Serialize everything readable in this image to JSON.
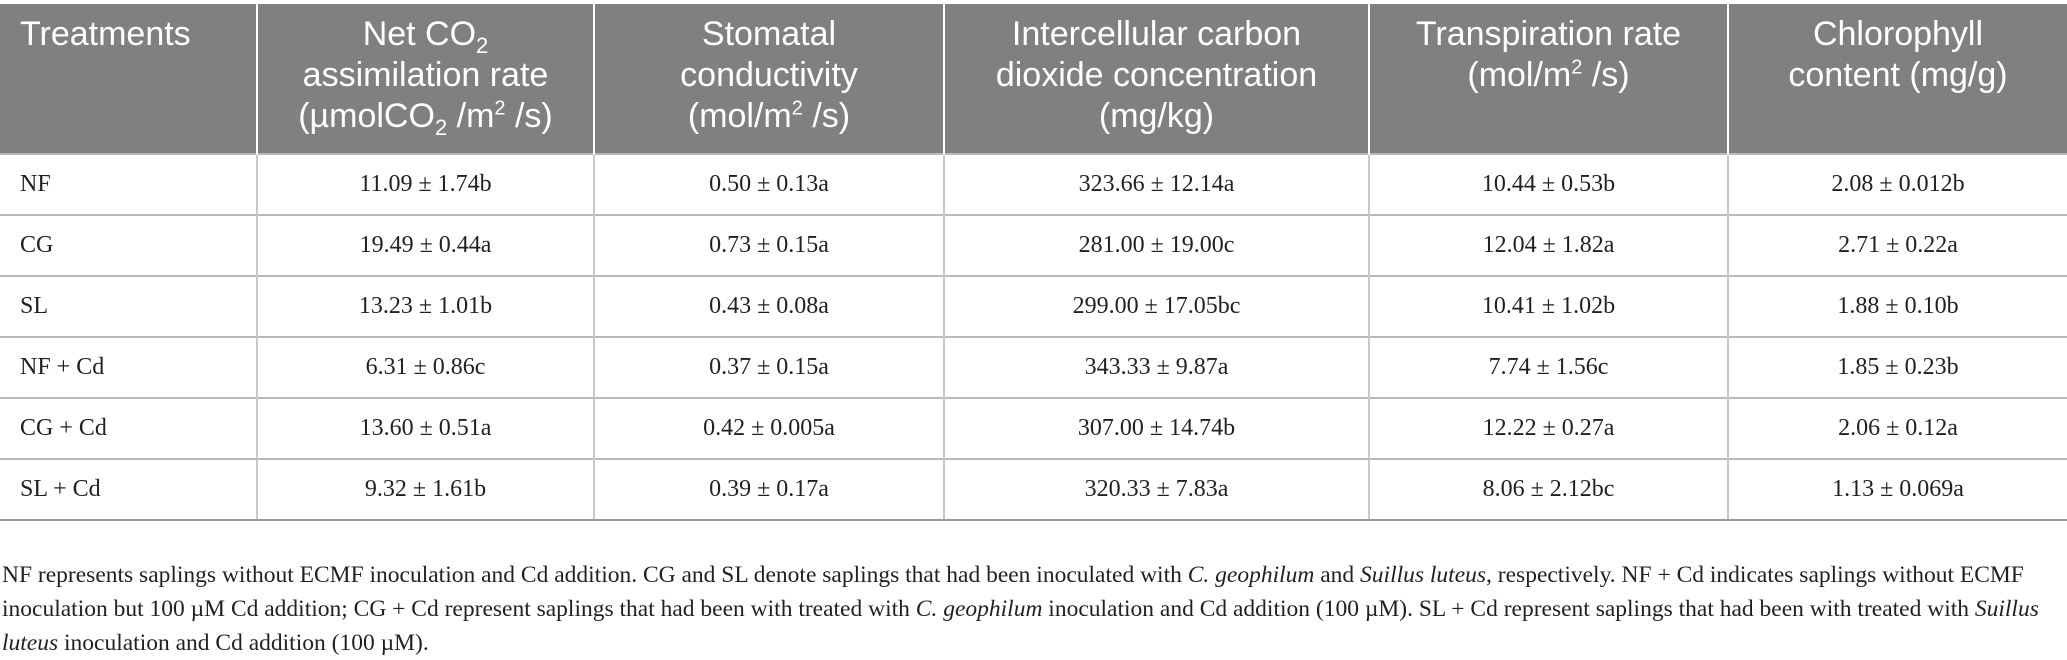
{
  "table": {
    "headers": [
      {
        "lines": [
          "Treatments"
        ]
      },
      {
        "line1_pre": "Net CO",
        "line1_sub": "2",
        "line2": "assimilation rate",
        "line3_pre": "(µmolCO",
        "line3_sub": "2",
        "line3_mid": " /m",
        "line3_sup": "2",
        "line3_post": " /s)"
      },
      {
        "line1": "Stomatal",
        "line2": "conductivity",
        "line3_pre": "(mol/m",
        "line3_sup": "2",
        "line3_post": " /s)"
      },
      {
        "line1": "Intercellular carbon",
        "line2": "dioxide concentration",
        "line3": "(mg/kg)"
      },
      {
        "line1": "Transpiration rate",
        "line2_pre": "(mol/m",
        "line2_sup": "2",
        "line2_post": " /s)"
      },
      {
        "line1": "Chlorophyll",
        "line2": "content (mg/g)"
      }
    ],
    "rows": [
      [
        "NF",
        "11.09 ± 1.74b",
        "0.50 ± 0.13a",
        "323.66 ± 12.14a",
        "10.44 ± 0.53b",
        "2.08 ± 0.012b"
      ],
      [
        "CG",
        "19.49 ± 0.44a",
        "0.73 ± 0.15a",
        "281.00 ± 19.00c",
        "12.04 ± 1.82a",
        "2.71 ± 0.22a"
      ],
      [
        "SL",
        "13.23 ± 1.01b",
        "0.43 ± 0.08a",
        "299.00 ± 17.05bc",
        "10.41 ± 1.02b",
        "1.88 ± 0.10b"
      ],
      [
        "NF + Cd",
        "6.31 ± 0.86c",
        "0.37 ± 0.15a",
        "343.33 ± 9.87a",
        "7.74 ± 1.56c",
        "1.85 ± 0.23b"
      ],
      [
        "CG + Cd",
        "13.60 ± 0.51a",
        "0.42 ± 0.005a",
        "307.00 ± 14.74b",
        "12.22 ± 0.27a",
        "2.06 ± 0.12a"
      ],
      [
        "SL + Cd",
        "9.32 ± 1.61b",
        "0.39 ± 0.17a",
        "320.33 ± 7.83a",
        "8.06 ± 2.12bc",
        "1.13 ± 0.069a"
      ]
    ]
  },
  "footnote": {
    "s1": "NF represents saplings without ECMF inoculation and Cd addition. CG and SL denote saplings that had been inoculated with ",
    "i1": "C. geophilum",
    "s2": " and ",
    "i2": "Suillus luteus",
    "s3": ", respectively. NF + Cd indicates saplings without ECMF inoculation but 100 µM Cd addition; CG + Cd represent saplings that had been with treated with ",
    "i3": "C. geophilum",
    "s4": " inoculation and Cd addition (100 µM). SL + Cd represent saplings that had been with treated with ",
    "i4": "Suillus luteus",
    "s5": " inoculation and Cd addition (100 µM)."
  }
}
